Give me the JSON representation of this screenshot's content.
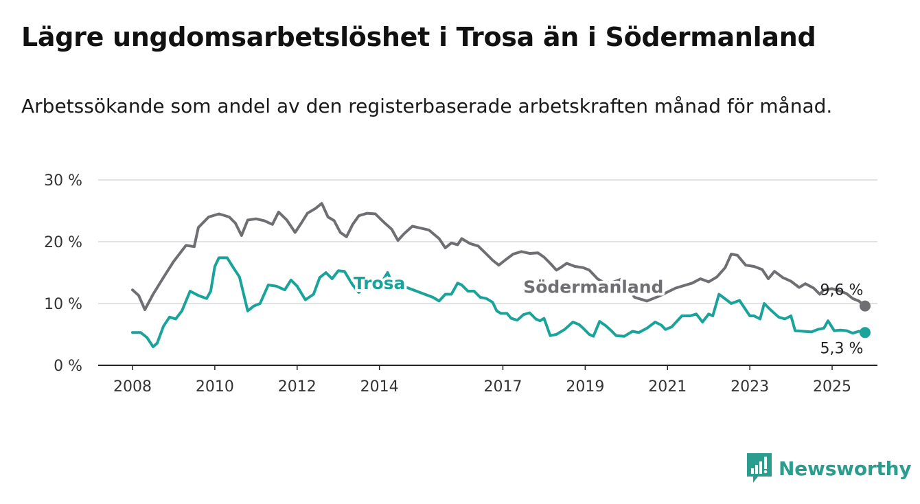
{
  "title": "Lägre ungdomsarbetslöshet i Trosa än i Södermanland",
  "subtitle": "Arbetssökande som andel av den registerbaserade arbetskraften månad för månad.",
  "brand": {
    "name": "Newsworthy",
    "icon": "newsworthy-logo-icon",
    "color": "#2a9d8f"
  },
  "chart_data": {
    "type": "line",
    "x_unit": "year",
    "ylim": [
      0,
      30
    ],
    "xlim": [
      2008.0,
      2026.1
    ],
    "y_ticks": [
      {
        "value": 0,
        "label": "0 %"
      },
      {
        "value": 10,
        "label": "10 %"
      },
      {
        "value": 20,
        "label": "20 %"
      },
      {
        "value": 30,
        "label": "30 %"
      }
    ],
    "x_ticks": [
      {
        "value": 2008,
        "label": "2008"
      },
      {
        "value": 2010,
        "label": "2010"
      },
      {
        "value": 2012,
        "label": "2012"
      },
      {
        "value": 2014,
        "label": "2014"
      },
      {
        "value": 2017,
        "label": "2017"
      },
      {
        "value": 2019,
        "label": "2019"
      },
      {
        "value": 2021,
        "label": "2021"
      },
      {
        "value": 2023,
        "label": "2023"
      },
      {
        "value": 2025,
        "label": "2025"
      }
    ],
    "grid": true,
    "series": [
      {
        "name": "Södermanland",
        "color": "#6e6e73",
        "end_label": "9,6 %",
        "points": [
          [
            2008.0,
            12.2
          ],
          [
            2008.15,
            11.3
          ],
          [
            2008.3,
            9.0
          ],
          [
            2008.5,
            11.5
          ],
          [
            2008.75,
            14.2
          ],
          [
            2009.0,
            16.8
          ],
          [
            2009.3,
            19.4
          ],
          [
            2009.5,
            19.2
          ],
          [
            2009.6,
            22.3
          ],
          [
            2009.85,
            24.0
          ],
          [
            2010.1,
            24.5
          ],
          [
            2010.35,
            24.0
          ],
          [
            2010.5,
            23.0
          ],
          [
            2010.65,
            21.0
          ],
          [
            2010.8,
            23.5
          ],
          [
            2011.0,
            23.7
          ],
          [
            2011.2,
            23.4
          ],
          [
            2011.4,
            22.8
          ],
          [
            2011.55,
            24.8
          ],
          [
            2011.75,
            23.5
          ],
          [
            2011.95,
            21.5
          ],
          [
            2012.1,
            23.0
          ],
          [
            2012.25,
            24.6
          ],
          [
            2012.45,
            25.4
          ],
          [
            2012.6,
            26.2
          ],
          [
            2012.75,
            24.0
          ],
          [
            2012.9,
            23.4
          ],
          [
            2013.05,
            21.5
          ],
          [
            2013.2,
            20.8
          ],
          [
            2013.35,
            22.8
          ],
          [
            2013.5,
            24.2
          ],
          [
            2013.7,
            24.6
          ],
          [
            2013.9,
            24.5
          ],
          [
            2014.1,
            23.2
          ],
          [
            2014.3,
            22.0
          ],
          [
            2014.45,
            20.2
          ],
          [
            2014.6,
            21.3
          ],
          [
            2014.8,
            22.5
          ],
          [
            2015.0,
            22.2
          ],
          [
            2015.2,
            21.9
          ],
          [
            2015.45,
            20.5
          ],
          [
            2015.6,
            19.0
          ],
          [
            2015.75,
            19.8
          ],
          [
            2015.9,
            19.5
          ],
          [
            2016.0,
            20.5
          ],
          [
            2016.2,
            19.7
          ],
          [
            2016.4,
            19.3
          ],
          [
            2016.6,
            18.0
          ],
          [
            2016.75,
            17.0
          ],
          [
            2016.9,
            16.2
          ],
          [
            2017.05,
            17.0
          ],
          [
            2017.25,
            18.0
          ],
          [
            2017.45,
            18.4
          ],
          [
            2017.65,
            18.1
          ],
          [
            2017.85,
            18.2
          ],
          [
            2018.0,
            17.5
          ],
          [
            2018.15,
            16.5
          ],
          [
            2018.3,
            15.4
          ],
          [
            2018.4,
            15.8
          ],
          [
            2018.55,
            16.5
          ],
          [
            2018.75,
            16.0
          ],
          [
            2018.95,
            15.8
          ],
          [
            2019.1,
            15.4
          ],
          [
            2019.3,
            14.0
          ],
          [
            2019.5,
            13.2
          ],
          [
            2019.7,
            13.5
          ],
          [
            2019.9,
            14.0
          ],
          [
            2020.2,
            11.0
          ],
          [
            2020.5,
            10.4
          ],
          [
            2020.8,
            11.2
          ],
          [
            2021.2,
            12.5
          ],
          [
            2021.6,
            13.3
          ],
          [
            2021.8,
            14.0
          ],
          [
            2022.0,
            13.5
          ],
          [
            2022.2,
            14.3
          ],
          [
            2022.4,
            15.8
          ],
          [
            2022.55,
            18.0
          ],
          [
            2022.7,
            17.8
          ],
          [
            2022.9,
            16.2
          ],
          [
            2023.1,
            16.0
          ],
          [
            2023.3,
            15.5
          ],
          [
            2023.45,
            14.0
          ],
          [
            2023.6,
            15.2
          ],
          [
            2023.8,
            14.2
          ],
          [
            2024.0,
            13.6
          ],
          [
            2024.2,
            12.6
          ],
          [
            2024.35,
            13.2
          ],
          [
            2024.55,
            12.5
          ],
          [
            2024.7,
            11.5
          ],
          [
            2024.8,
            12.2
          ],
          [
            2025.0,
            12.4
          ],
          [
            2025.2,
            12.0
          ],
          [
            2025.35,
            11.6
          ],
          [
            2025.5,
            10.8
          ],
          [
            2025.65,
            10.4
          ],
          [
            2025.8,
            9.6
          ]
        ]
      },
      {
        "name": "Trosa",
        "color": "#1aa39a",
        "end_label": "5,3 %",
        "points": [
          [
            2008.0,
            5.3
          ],
          [
            2008.2,
            5.3
          ],
          [
            2008.35,
            4.5
          ],
          [
            2008.5,
            3.0
          ],
          [
            2008.6,
            3.6
          ],
          [
            2008.75,
            6.3
          ],
          [
            2008.9,
            7.8
          ],
          [
            2009.05,
            7.5
          ],
          [
            2009.2,
            8.8
          ],
          [
            2009.4,
            12.0
          ],
          [
            2009.6,
            11.3
          ],
          [
            2009.8,
            10.8
          ],
          [
            2009.9,
            12.0
          ],
          [
            2010.0,
            16.0
          ],
          [
            2010.1,
            17.4
          ],
          [
            2010.3,
            17.4
          ],
          [
            2010.45,
            15.8
          ],
          [
            2010.6,
            14.3
          ],
          [
            2010.8,
            8.8
          ],
          [
            2010.95,
            9.6
          ],
          [
            2011.1,
            10.0
          ],
          [
            2011.3,
            13.0
          ],
          [
            2011.5,
            12.8
          ],
          [
            2011.7,
            12.2
          ],
          [
            2011.85,
            13.8
          ],
          [
            2012.0,
            12.8
          ],
          [
            2012.2,
            10.6
          ],
          [
            2012.4,
            11.5
          ],
          [
            2012.55,
            14.2
          ],
          [
            2012.7,
            15.0
          ],
          [
            2012.85,
            14.0
          ],
          [
            2013.0,
            15.3
          ],
          [
            2013.15,
            15.2
          ],
          [
            2013.35,
            13.0
          ],
          [
            2013.5,
            11.8
          ],
          [
            2013.65,
            13.1
          ],
          [
            2013.8,
            12.6
          ],
          [
            2013.9,
            14.0
          ],
          [
            2014.05,
            13.4
          ],
          [
            2014.2,
            15.0
          ],
          [
            2014.35,
            12.6
          ],
          [
            2014.5,
            13.0
          ],
          [
            2015.3,
            11.0
          ],
          [
            2015.45,
            10.4
          ],
          [
            2015.6,
            11.5
          ],
          [
            2015.75,
            11.5
          ],
          [
            2015.9,
            13.3
          ],
          [
            2016.0,
            13.0
          ],
          [
            2016.15,
            12.0
          ],
          [
            2016.3,
            12.0
          ],
          [
            2016.45,
            11.0
          ],
          [
            2016.6,
            10.8
          ],
          [
            2016.75,
            10.2
          ],
          [
            2016.85,
            8.8
          ],
          [
            2016.95,
            8.4
          ],
          [
            2017.1,
            8.4
          ],
          [
            2017.2,
            7.6
          ],
          [
            2017.35,
            7.3
          ],
          [
            2017.5,
            8.2
          ],
          [
            2017.65,
            8.5
          ],
          [
            2017.8,
            7.5
          ],
          [
            2017.9,
            7.2
          ],
          [
            2018.0,
            7.6
          ],
          [
            2018.15,
            4.8
          ],
          [
            2018.3,
            5.0
          ],
          [
            2018.5,
            5.8
          ],
          [
            2018.7,
            7.0
          ],
          [
            2018.85,
            6.6
          ],
          [
            2018.95,
            6.0
          ],
          [
            2019.1,
            5.0
          ],
          [
            2019.2,
            4.7
          ],
          [
            2019.35,
            7.1
          ],
          [
            2019.5,
            6.4
          ],
          [
            2019.65,
            5.5
          ],
          [
            2019.75,
            4.8
          ],
          [
            2019.95,
            4.7
          ],
          [
            2020.15,
            5.5
          ],
          [
            2020.3,
            5.3
          ],
          [
            2020.5,
            6.0
          ],
          [
            2020.7,
            7.0
          ],
          [
            2020.85,
            6.5
          ],
          [
            2020.95,
            5.8
          ],
          [
            2021.1,
            6.2
          ],
          [
            2021.35,
            8.0
          ],
          [
            2021.55,
            8.0
          ],
          [
            2021.7,
            8.3
          ],
          [
            2021.85,
            7.0
          ],
          [
            2022.0,
            8.3
          ],
          [
            2022.1,
            8.0
          ],
          [
            2022.25,
            11.5
          ],
          [
            2022.45,
            10.5
          ],
          [
            2022.55,
            10.0
          ],
          [
            2022.75,
            10.5
          ],
          [
            2022.85,
            9.5
          ],
          [
            2023.0,
            8.0
          ],
          [
            2023.1,
            8.0
          ],
          [
            2023.25,
            7.5
          ],
          [
            2023.35,
            10.0
          ],
          [
            2023.5,
            9.0
          ],
          [
            2023.7,
            7.8
          ],
          [
            2023.85,
            7.5
          ],
          [
            2024.0,
            8.0
          ],
          [
            2024.1,
            5.6
          ],
          [
            2024.3,
            5.5
          ],
          [
            2024.5,
            5.4
          ],
          [
            2024.65,
            5.8
          ],
          [
            2024.8,
            6.0
          ],
          [
            2024.9,
            7.2
          ],
          [
            2025.05,
            5.6
          ],
          [
            2025.2,
            5.7
          ],
          [
            2025.35,
            5.6
          ],
          [
            2025.5,
            5.2
          ],
          [
            2025.65,
            5.5
          ],
          [
            2025.8,
            5.3
          ]
        ]
      }
    ],
    "labels": [
      {
        "series": "Trosa",
        "text": "Trosa",
        "x": 2014.0,
        "y": 13.2
      },
      {
        "series": "Södermanland",
        "text": "Södermanland",
        "x": 2019.2,
        "y": 12.6
      }
    ]
  }
}
